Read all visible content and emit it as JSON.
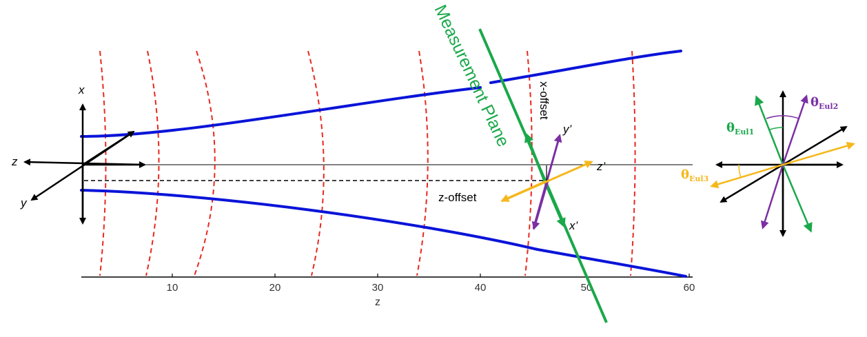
{
  "colors": {
    "beam": "#0a14d8",
    "wavefront": "#e8281e",
    "measurement_plane": "#1aa84a",
    "primed_y": "#7b2fa3",
    "primed_z": "#f5b81c",
    "axis": "#000000"
  },
  "plot": {
    "xlabel": "z",
    "ticks": [
      "10",
      "20",
      "30",
      "40",
      "50",
      "60"
    ]
  },
  "labels": {
    "axis_x": "x",
    "axis_y": "y",
    "axis_z": "z",
    "measurement_plane": "Measurement Plane",
    "x_offset": "x-offset",
    "z_offset": "z-offset",
    "x_prime": "x’",
    "y_prime": "y’",
    "z_prime": "z’"
  },
  "euler": {
    "theta": "θ",
    "eul1": "Eul1",
    "eul2": "Eul2",
    "eul3": "Eul3"
  }
}
